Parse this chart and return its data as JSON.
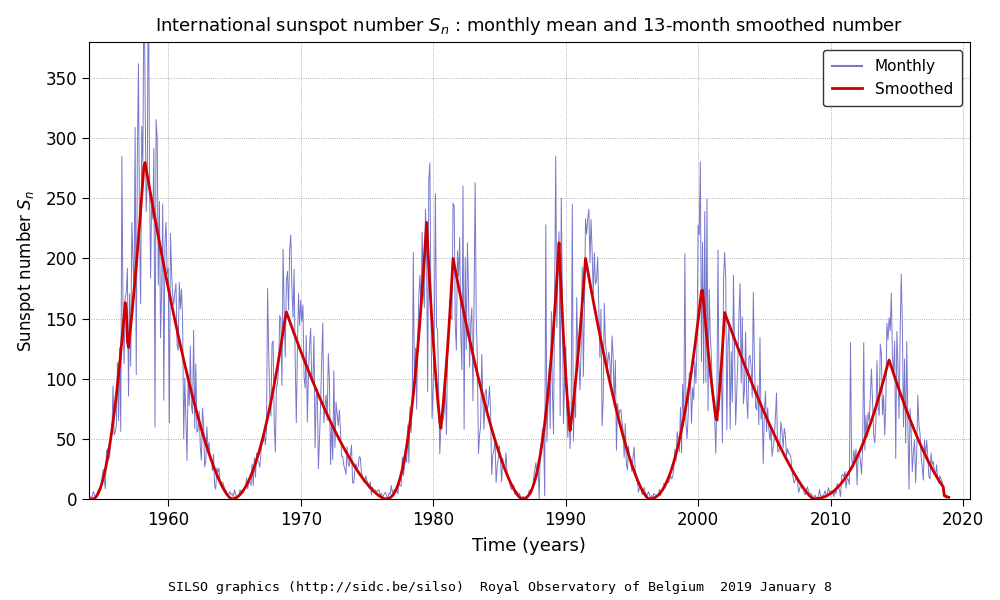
{
  "title": "International sunspot number $S_n$ : monthly mean and 13-month smoothed number",
  "xlabel": "Time (years)",
  "ylabel": "Sunspot number $S_n$",
  "footer": "SILSO graphics (http://sidc.be/silso)  Royal Observatory of Belgium  2019 January 8",
  "ylim": [
    0,
    380
  ],
  "xlim": [
    1954.0,
    2020.5
  ],
  "yticks": [
    0,
    50,
    100,
    150,
    200,
    250,
    300,
    350
  ],
  "xticks": [
    1960,
    1970,
    1980,
    1990,
    2000,
    2010,
    2020
  ],
  "monthly_color": "#7777CC",
  "smoothed_color": "#CC0000",
  "monthly_lw": 0.7,
  "smoothed_lw": 2.0,
  "bg_color": "#ffffff",
  "grid_color": "#999999"
}
